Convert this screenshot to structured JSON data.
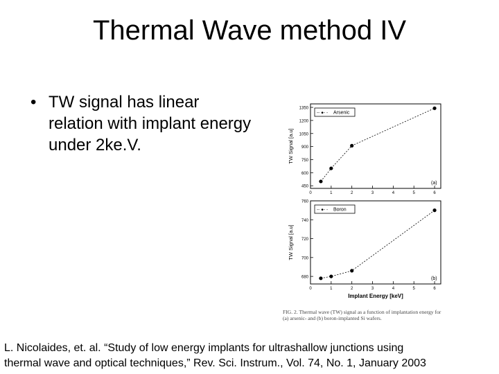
{
  "slide": {
    "title": "Thermal Wave method IV",
    "bullet": "TW signal has linear relation with implant energy under 2ke.V.",
    "bullet_marker": "•",
    "reference_line1": "L. Nicolaides, et. al. “Study of low energy implants for ultrashallow junctions using",
    "reference_line2": "thermal wave and optical techniques,” Rev. Sci. Instrum., Vol. 74, No. 1, January 2003"
  },
  "figure": {
    "caption_line1": "FIG. 2. Thermal wave (TW) signal as a function of implantation energy for",
    "caption_line2": "(a) arsenic- and (b) boron-implanted Si wafers.",
    "xlabel": "Implant Energy [keV]"
  },
  "chart_data": [
    {
      "type": "line",
      "panel_label": "(a)",
      "ylabel": "TW Signal [a.u]",
      "legend": "Arsenic",
      "legend_marker": "-- ●- -",
      "x": [
        0.5,
        1,
        2,
        6
      ],
      "values": [
        500,
        650,
        910,
        1340
      ],
      "xlim": [
        0,
        6.3
      ],
      "ylim": [
        420,
        1390
      ],
      "yticks": [
        450,
        600,
        750,
        900,
        1050,
        1200,
        1350
      ],
      "xticks": [
        0,
        1,
        2,
        3,
        4,
        5,
        6
      ],
      "color": "#000000"
    },
    {
      "type": "line",
      "panel_label": "(b)",
      "ylabel": "TW Signal [a.u]",
      "legend": "Boron",
      "legend_marker": "-- ●- -",
      "x": [
        0.5,
        1,
        2,
        6
      ],
      "values": [
        678,
        680,
        686,
        750
      ],
      "xlim": [
        0,
        6.3
      ],
      "ylim": [
        672,
        760
      ],
      "yticks": [
        680,
        700,
        720,
        740,
        760
      ],
      "xticks": [
        0,
        1,
        2,
        3,
        4,
        5,
        6
      ],
      "color": "#000000"
    }
  ]
}
